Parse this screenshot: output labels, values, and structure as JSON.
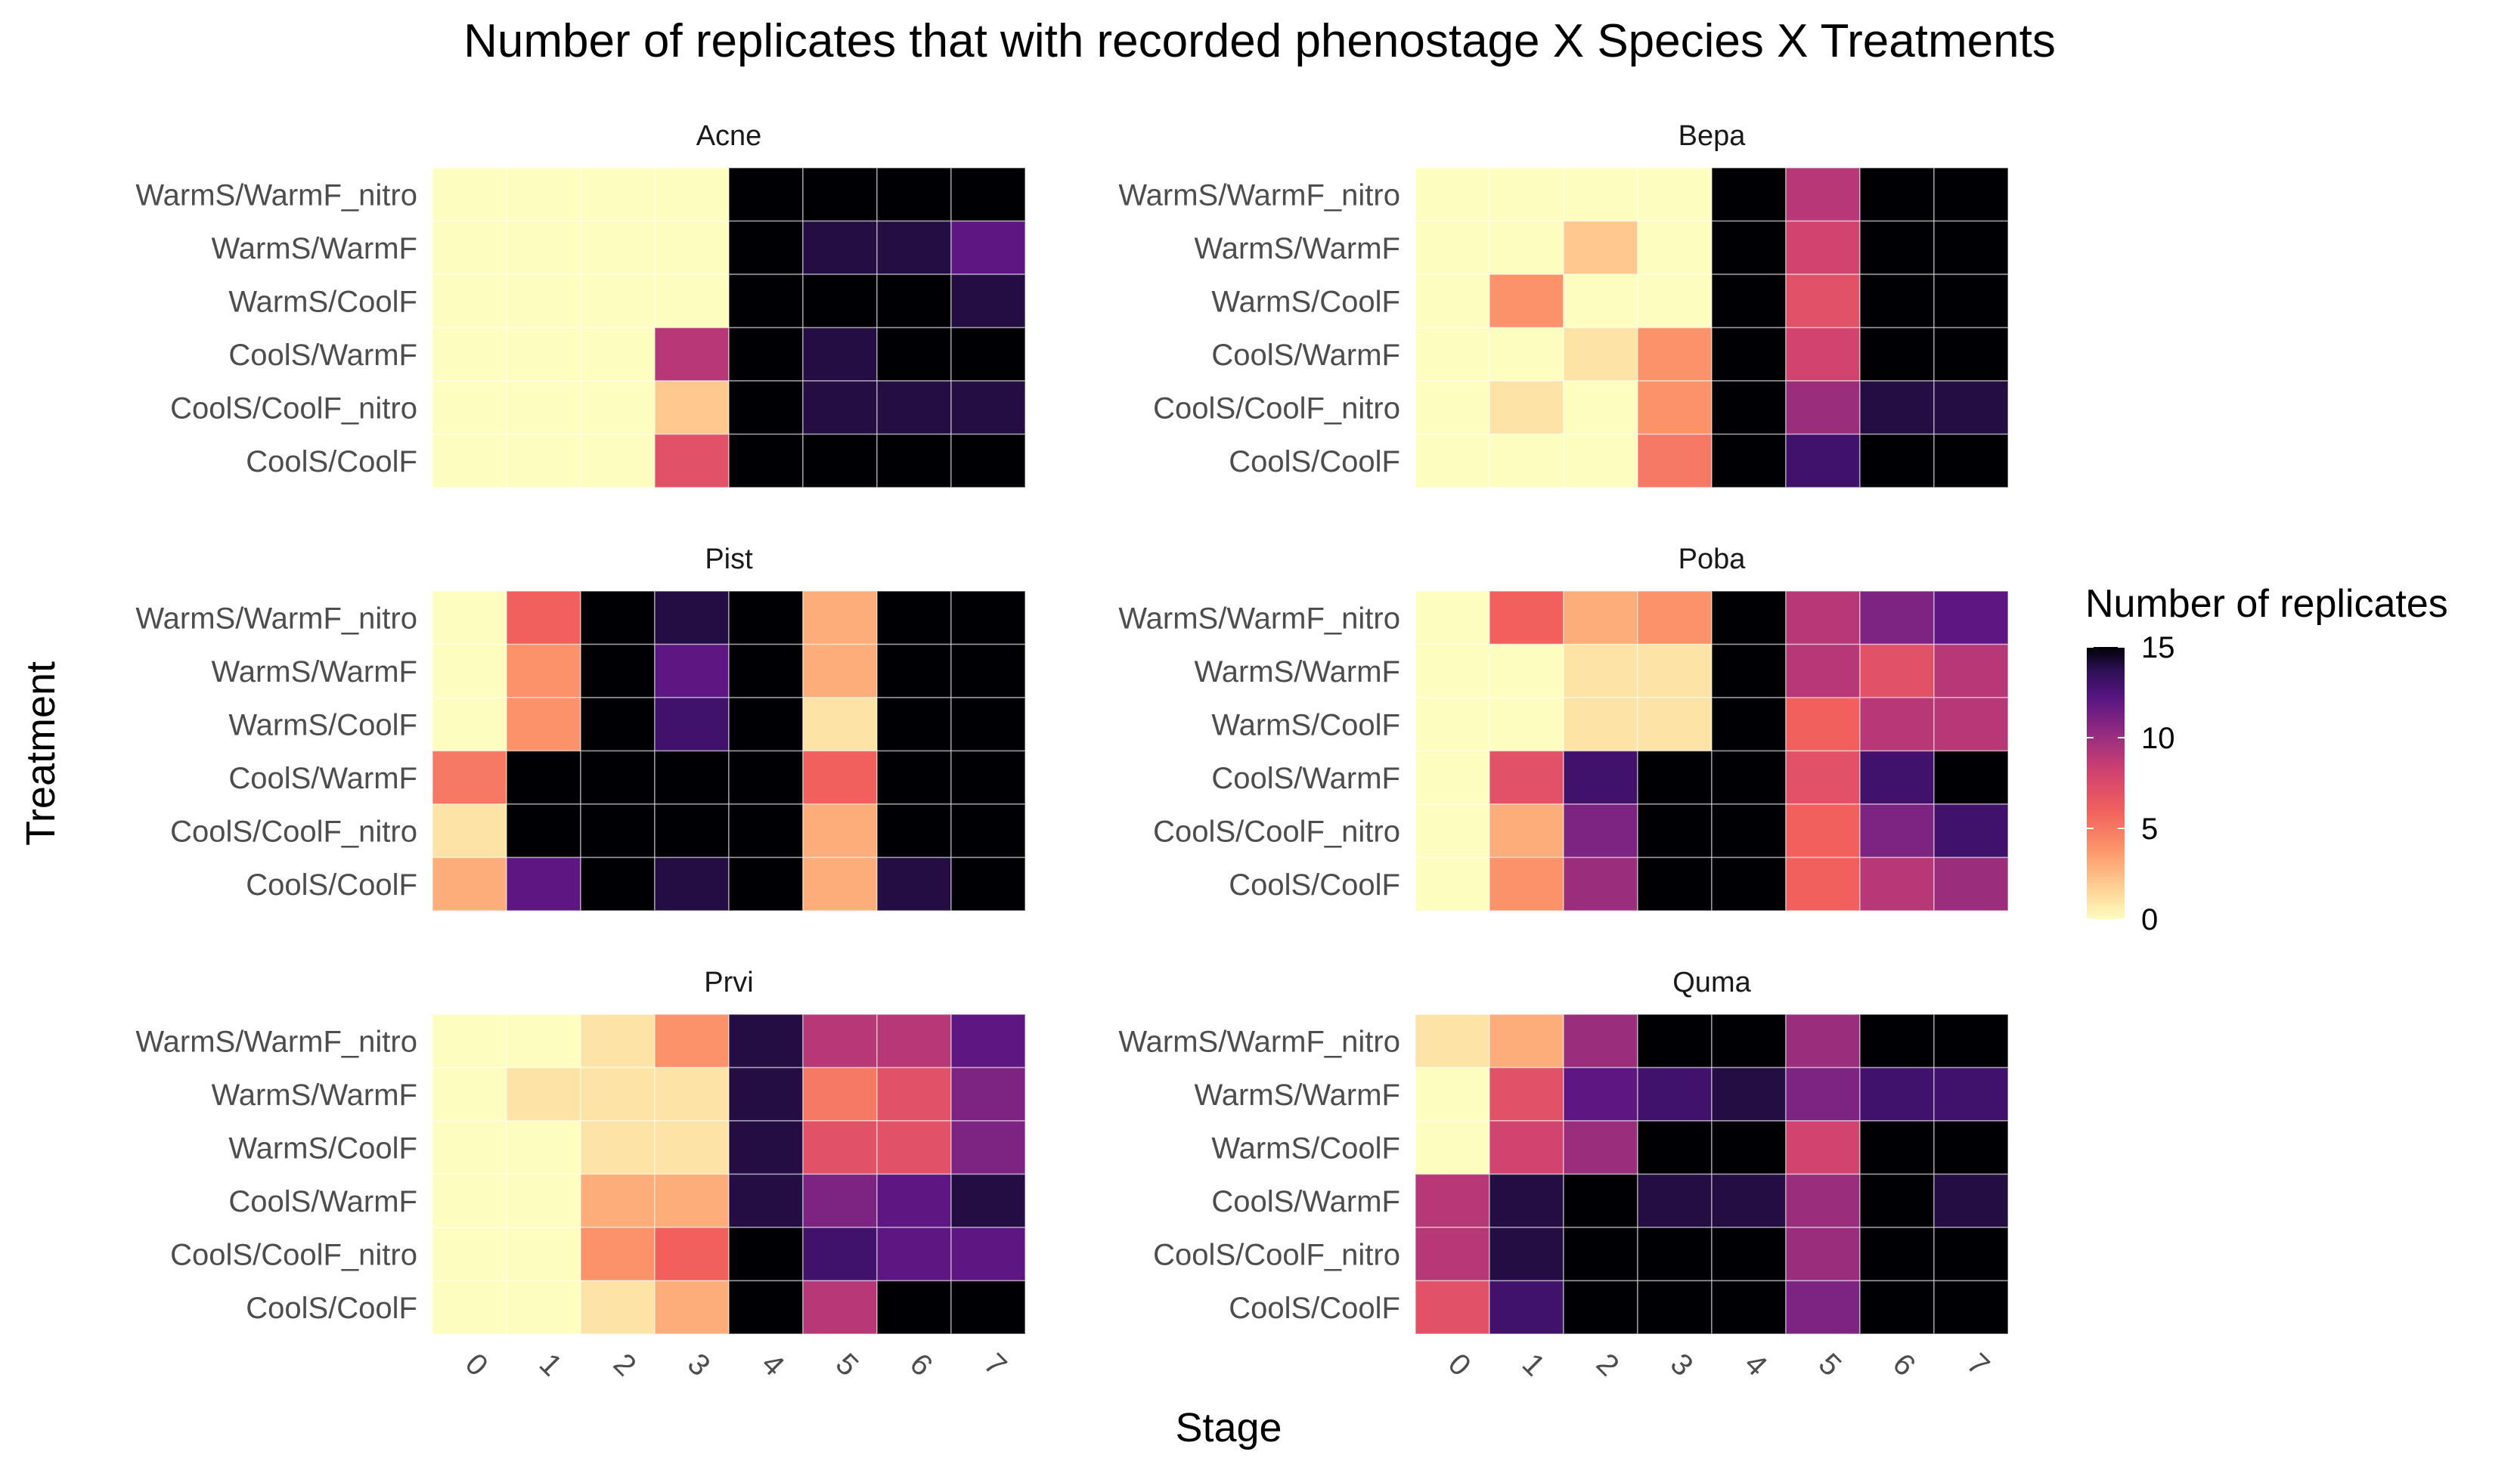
{
  "chart_data": {
    "type": "heatmap",
    "title": "Number of replicates that with recorded phenostage X Species X Treatments",
    "xlabel": "Stage",
    "ylabel": "Treatment",
    "legend": {
      "title": "Number of replicates",
      "position": "right",
      "ticks": [
        0,
        5,
        10,
        15
      ],
      "range": [
        0,
        15
      ]
    },
    "colorscale": "magma (reversed)",
    "x_categories": [
      "0",
      "1",
      "2",
      "3",
      "4",
      "5",
      "6",
      "7"
    ],
    "y_categories": [
      "WarmS/WarmF_nitro",
      "WarmS/WarmF",
      "WarmS/CoolF",
      "CoolS/WarmF",
      "CoolS/CoolF_nitro",
      "CoolS/CoolF"
    ],
    "facets": [
      {
        "name": "Acne",
        "values": [
          [
            0,
            0,
            0,
            0,
            15,
            15,
            15,
            15
          ],
          [
            0,
            0,
            0,
            0,
            15,
            14,
            14,
            12
          ],
          [
            0,
            0,
            0,
            0,
            15,
            15,
            15,
            14
          ],
          [
            0,
            0,
            0,
            9,
            15,
            14,
            15,
            15
          ],
          [
            0,
            0,
            0,
            2,
            15,
            14,
            14,
            14
          ],
          [
            0,
            0,
            0,
            7,
            15,
            15,
            15,
            15
          ]
        ]
      },
      {
        "name": "Bepa",
        "values": [
          [
            0,
            0,
            0,
            0,
            15,
            9,
            15,
            15
          ],
          [
            0,
            0,
            2,
            0,
            15,
            8,
            15,
            15
          ],
          [
            0,
            4,
            0,
            0,
            15,
            7,
            15,
            15
          ],
          [
            0,
            0,
            1,
            4,
            15,
            8,
            15,
            15
          ],
          [
            0,
            1,
            0,
            4,
            15,
            10,
            14,
            14
          ],
          [
            0,
            0,
            0,
            5,
            15,
            13,
            15,
            15
          ]
        ]
      },
      {
        "name": "Pist",
        "values": [
          [
            0,
            6,
            15,
            14,
            15,
            3,
            15,
            15
          ],
          [
            0,
            4,
            15,
            12,
            15,
            3,
            15,
            15
          ],
          [
            0,
            4,
            15,
            13,
            15,
            1,
            15,
            15
          ],
          [
            5,
            15,
            15,
            15,
            15,
            6,
            15,
            15
          ],
          [
            1,
            15,
            15,
            15,
            15,
            3,
            15,
            15
          ],
          [
            3,
            12,
            15,
            14,
            15,
            3,
            14,
            15
          ]
        ]
      },
      {
        "name": "Poba",
        "values": [
          [
            0,
            6,
            3,
            4,
            15,
            9,
            11,
            12
          ],
          [
            0,
            0,
            1,
            1,
            15,
            9,
            7,
            9
          ],
          [
            0,
            0,
            1,
            1,
            15,
            6,
            9,
            9
          ],
          [
            0,
            7,
            13,
            15,
            15,
            7,
            13,
            15
          ],
          [
            0,
            3,
            11,
            15,
            15,
            6,
            11,
            13
          ],
          [
            0,
            4,
            10,
            15,
            15,
            6,
            9,
            10
          ]
        ]
      },
      {
        "name": "Prvi",
        "values": [
          [
            0,
            0,
            1,
            4,
            14,
            9,
            9,
            12
          ],
          [
            0,
            1,
            1,
            1,
            14,
            5,
            7,
            11
          ],
          [
            0,
            0,
            1,
            1,
            14,
            7,
            7,
            11
          ],
          [
            0,
            0,
            3,
            3,
            14,
            11,
            12,
            14
          ],
          [
            0,
            0,
            4,
            6,
            15,
            13,
            12,
            12
          ],
          [
            0,
            0,
            1,
            3,
            15,
            9,
            15,
            15
          ]
        ]
      },
      {
        "name": "Quma",
        "values": [
          [
            1,
            3,
            10,
            15,
            15,
            10,
            15,
            15
          ],
          [
            0,
            7,
            12,
            13,
            14,
            11,
            13,
            13
          ],
          [
            0,
            8,
            10,
            15,
            15,
            8,
            15,
            15
          ],
          [
            9,
            14,
            15,
            14,
            14,
            10,
            15,
            14
          ],
          [
            9,
            14,
            15,
            15,
            15,
            10,
            15,
            15
          ],
          [
            7,
            13,
            15,
            15,
            15,
            11,
            15,
            15
          ]
        ]
      }
    ]
  }
}
